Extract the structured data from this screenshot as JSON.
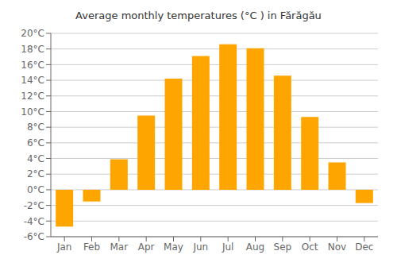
{
  "chart_data": {
    "type": "bar",
    "title": "Average monthly temperatures (°C ) in Fărăgău",
    "categories": [
      "Jan",
      "Feb",
      "Mar",
      "Apr",
      "May",
      "Jun",
      "Jul",
      "Aug",
      "Sep",
      "Oct",
      "Nov",
      "Dec"
    ],
    "values": [
      -4.7,
      -1.5,
      3.9,
      9.5,
      14.2,
      17.1,
      18.6,
      18.1,
      14.6,
      9.3,
      3.5,
      -1.7
    ],
    "color": "#FFA500",
    "ylim": [
      -6,
      20
    ],
    "yticks": [
      {
        "value": -6,
        "label": "-6°C"
      },
      {
        "value": -4,
        "label": "-4°C"
      },
      {
        "value": -2,
        "label": "-2°C"
      },
      {
        "value": 0,
        "label": "0°C"
      },
      {
        "value": 2,
        "label": "2°C"
      },
      {
        "value": 4,
        "label": "4°C"
      },
      {
        "value": 6,
        "label": "6°C"
      },
      {
        "value": 8,
        "label": "8°C"
      },
      {
        "value": 10,
        "label": "10°C"
      },
      {
        "value": 12,
        "label": "12°C"
      },
      {
        "value": 14,
        "label": "14°C"
      },
      {
        "value": 16,
        "label": "16°C"
      },
      {
        "value": 18,
        "label": "18°C"
      },
      {
        "value": 20,
        "label": "20°C"
      }
    ],
    "grid": true
  }
}
